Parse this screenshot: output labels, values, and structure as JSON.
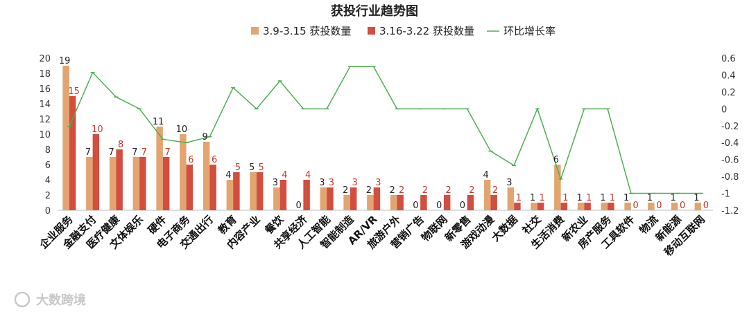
{
  "chart_data": {
    "type": "bar",
    "title": "获投行业趋势图",
    "categories": [
      "企业服务",
      "金融支付",
      "医疗健康",
      "文体娱乐",
      "硬件",
      "电子商务",
      "交通出行",
      "教育",
      "内容产业",
      "餐饮",
      "共享经济",
      "人工智能",
      "智能制造",
      "AR/VR",
      "旅游户外",
      "营销广告",
      "物联网",
      "新零售",
      "游戏动漫",
      "大数据",
      "社交",
      "生活消费",
      "新农业",
      "房产服务",
      "工具软件",
      "物流",
      "新能源",
      "移动互联网"
    ],
    "series": [
      {
        "name": "3.9-3.15 获投数量",
        "type": "bar",
        "axis": "left",
        "color": "#e3a56f",
        "values": [
          19,
          7,
          7,
          7,
          11,
          10,
          9,
          4,
          5,
          3,
          0,
          3,
          2,
          2,
          2,
          0,
          0,
          0,
          4,
          3,
          1,
          6,
          1,
          1,
          1,
          1,
          1,
          1
        ]
      },
      {
        "name": "3.16-3.22 获投数量",
        "type": "bar",
        "axis": "left",
        "color": "#d24e3f",
        "values": [
          15,
          10,
          8,
          7,
          7,
          6,
          6,
          5,
          5,
          4,
          4,
          3,
          3,
          3,
          2,
          2,
          2,
          2,
          2,
          1,
          1,
          1,
          1,
          1,
          0,
          0,
          0,
          0
        ]
      },
      {
        "name": "环比增长率",
        "type": "line",
        "axis": "right",
        "color": "#4caf50",
        "values": [
          -0.21,
          0.43,
          0.14,
          0,
          -0.36,
          -0.4,
          -0.33,
          0.25,
          0,
          0.33,
          0,
          0,
          0.5,
          0.5,
          0,
          0,
          0,
          0,
          -0.5,
          -0.67,
          0,
          -0.83,
          0,
          0,
          -1,
          -1,
          -1,
          -1
        ]
      }
    ],
    "ylim": [
      0,
      20
    ],
    "yticks": [
      "0",
      "2",
      "4",
      "6",
      "8",
      "10",
      "12",
      "14",
      "16",
      "18",
      "20"
    ],
    "y2lim": [
      -1.2,
      0.6
    ],
    "y2ticks": [
      "0.6",
      "0.4",
      "0.2",
      "0",
      "-0.2",
      "-0.4",
      "-0.6",
      "-0.8",
      "-1",
      "-1.2"
    ],
    "legend_position": "top",
    "grid": false
  },
  "watermark": "大数跨境"
}
